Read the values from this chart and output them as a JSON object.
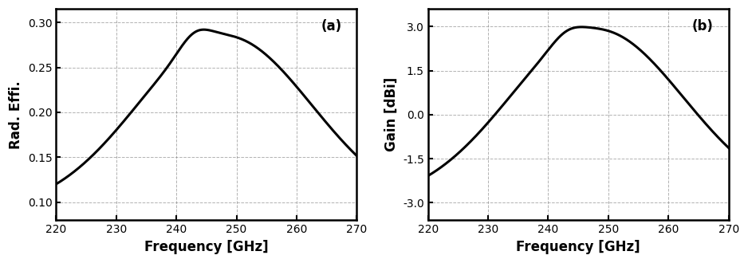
{
  "fig_width": 9.38,
  "fig_height": 3.3,
  "dpi": 100,
  "subplot_a": {
    "xlabel": "Frequency [GHz]",
    "ylabel": "Rad. Effi.",
    "xlim": [
      220,
      270
    ],
    "ylim": [
      0.08,
      0.315
    ],
    "yticks": [
      0.1,
      0.15,
      0.2,
      0.25,
      0.3
    ],
    "xticks": [
      220,
      230,
      240,
      250,
      260,
      270
    ],
    "label": "(a)",
    "line_color": "#000000",
    "line_width": 2.2
  },
  "subplot_b": {
    "xlabel": "Frequency [GHz]",
    "ylabel": "Gain [dBi]",
    "xlim": [
      220,
      270
    ],
    "ylim": [
      -3.6,
      3.6
    ],
    "yticks": [
      -3.0,
      -1.5,
      0.0,
      1.5,
      3.0
    ],
    "xticks": [
      220,
      230,
      240,
      250,
      260,
      270
    ],
    "label": "(b)",
    "line_color": "#000000",
    "line_width": 2.2
  },
  "background_color": "#ffffff",
  "font_color": "#000000"
}
